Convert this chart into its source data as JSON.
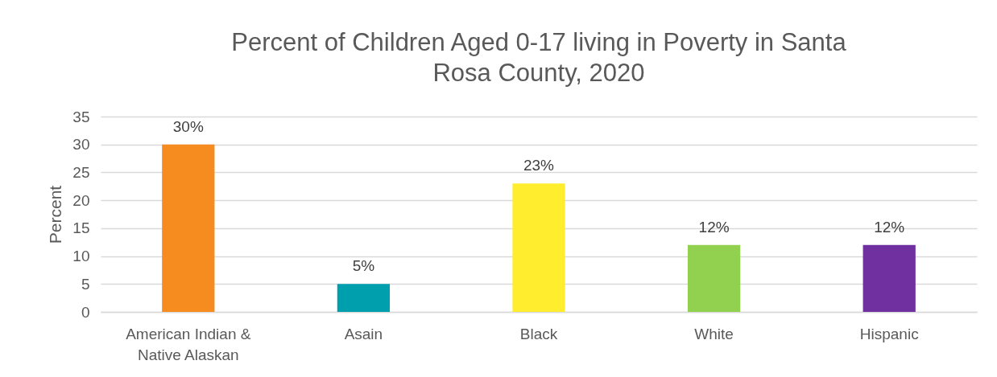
{
  "chart_data": {
    "type": "bar",
    "title": "Percent of Children Aged 0-17 living in Poverty in Santa Rosa County, 2020",
    "ylabel": "Percent",
    "categories": [
      "American Indian & Native Alaskan",
      "Asain",
      "Black",
      "White",
      "Hispanic"
    ],
    "values": [
      30,
      5,
      23,
      12,
      12
    ],
    "colors": [
      "#f68b1f",
      "#009fae",
      "#ffed2e",
      "#92d050",
      "#7030a0"
    ],
    "value_labels": [
      "30%",
      "5%",
      "23%",
      "12%",
      "12%"
    ],
    "ylim": [
      0,
      35
    ],
    "yticks": [
      0,
      5,
      10,
      15,
      20,
      25,
      30,
      35
    ],
    "grid": "y",
    "legend": false
  }
}
